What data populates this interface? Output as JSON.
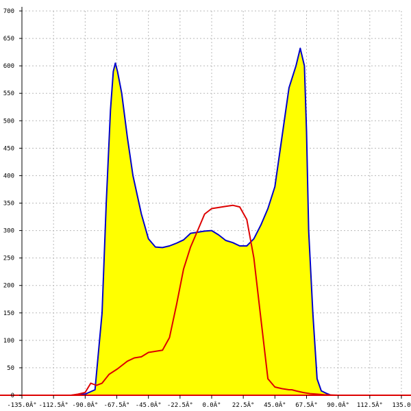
{
  "chart_data": {
    "type": "area",
    "title": "",
    "xlabel": "",
    "ylabel": "",
    "xlim": [
      -135,
      135
    ],
    "ylim": [
      0,
      700
    ],
    "x_ticks": [
      -135,
      -112.5,
      -90,
      -67.5,
      -45,
      -22.5,
      0,
      22.5,
      45,
      67.5,
      90,
      112.5,
      135
    ],
    "x_tick_labels": [
      "-135.0Â°",
      "-112.5Â°",
      "-90.0Â°",
      "-67.5Â°",
      "-45.0Â°",
      "-22.5Â°",
      "0.0Â°",
      "22.5Â°",
      "45.0Â°",
      "67.5Â°",
      "90.0Â°",
      "112.5Â°",
      "135.0"
    ],
    "y_ticks": [
      0,
      50,
      100,
      150,
      200,
      250,
      300,
      350,
      400,
      450,
      500,
      550,
      600,
      650,
      700
    ],
    "y_tick_labels": [
      "0",
      "50",
      "100",
      "150",
      "200",
      "250",
      "300",
      "350",
      "400",
      "450",
      "500",
      "550",
      "600",
      "650",
      "700"
    ],
    "grid": true,
    "series": [
      {
        "color": "#0000cc",
        "fill": "#ffff00",
        "x": [
          -100,
          -90,
          -83,
          -78,
          -75,
          -72,
          -70,
          -68.5,
          -67,
          -64,
          -60,
          -56,
          -50,
          -45,
          -40,
          -35,
          -30,
          -25,
          -20,
          -15,
          -10,
          -5,
          0,
          5,
          10,
          15,
          20,
          25,
          30,
          35,
          40,
          45,
          50,
          55,
          60,
          63,
          66,
          67.5,
          69,
          72,
          75,
          78,
          82,
          85,
          90,
          100
        ],
        "y": [
          0,
          2,
          10,
          150,
          350,
          520,
          590,
          605,
          590,
          550,
          470,
          400,
          330,
          285,
          270,
          269,
          272,
          277,
          283,
          295,
          297,
          299,
          300,
          292,
          282,
          278,
          272,
          272,
          285,
          310,
          340,
          380,
          470,
          560,
          600,
          632,
          600,
          480,
          300,
          150,
          30,
          8,
          3,
          0,
          0,
          0
        ]
      },
      {
        "color": "#dd0000",
        "fill": "none",
        "x": [
          -100,
          -95,
          -90,
          -86,
          -84,
          -82,
          -78,
          -73,
          -67,
          -60,
          -55,
          -50,
          -45,
          -40,
          -35,
          -30,
          -25,
          -20,
          -15,
          -10,
          -5,
          0,
          5,
          10,
          15,
          20,
          25,
          30,
          35,
          40,
          45,
          50,
          55,
          57,
          60,
          65,
          70,
          75,
          80,
          90,
          100
        ],
        "y": [
          0,
          2,
          5,
          22,
          20,
          18,
          22,
          38,
          48,
          62,
          68,
          70,
          78,
          80,
          82,
          105,
          165,
          230,
          270,
          300,
          330,
          340,
          342,
          344,
          346,
          343,
          320,
          250,
          140,
          30,
          15,
          12,
          10,
          10,
          8,
          5,
          3,
          2,
          1,
          0,
          0
        ]
      }
    ]
  }
}
